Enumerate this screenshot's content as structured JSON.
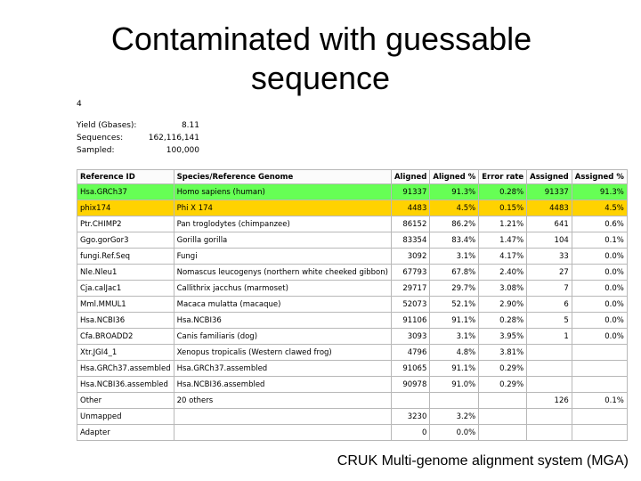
{
  "slide": {
    "title_line1": "Contaminated with guessable",
    "title_line2": "sequence",
    "footer": "CRUK Multi-genome alignment system (MGA)"
  },
  "figure": {
    "number": "4",
    "stats": [
      {
        "label": "Yield (Gbases):",
        "value": "8.11"
      },
      {
        "label": "Sequences:",
        "value": "162,116,141"
      },
      {
        "label": "Sampled:",
        "value": "100,000"
      }
    ],
    "columns": [
      "Reference ID",
      "Species/Reference Genome",
      "Aligned",
      "Aligned %",
      "Error rate",
      "Assigned",
      "Assigned %"
    ],
    "rows": [
      {
        "highlight": "green",
        "cells": [
          "Hsa.GRCh37",
          "Homo sapiens (human)",
          "91337",
          "91.3%",
          "0.28%",
          "91337",
          "91.3%"
        ]
      },
      {
        "highlight": "yellow",
        "cells": [
          "phix174",
          "Phi X 174",
          "4483",
          "4.5%",
          "0.15%",
          "4483",
          "4.5%"
        ]
      },
      {
        "highlight": "",
        "cells": [
          "Ptr.CHIMP2",
          "Pan troglodytes (chimpanzee)",
          "86152",
          "86.2%",
          "1.21%",
          "641",
          "0.6%"
        ]
      },
      {
        "highlight": "",
        "cells": [
          "Ggo.gorGor3",
          "Gorilla gorilla",
          "83354",
          "83.4%",
          "1.47%",
          "104",
          "0.1%"
        ]
      },
      {
        "highlight": "",
        "cells": [
          "fungi.Ref.Seq",
          "Fungi",
          "3092",
          "3.1%",
          "4.17%",
          "33",
          "0.0%"
        ]
      },
      {
        "highlight": "",
        "cells": [
          "Nle.Nleu1",
          "Nomascus leucogenys (northern white cheeked gibbon)",
          "67793",
          "67.8%",
          "2.40%",
          "27",
          "0.0%"
        ]
      },
      {
        "highlight": "",
        "cells": [
          "Cja.calJac1",
          "Callithrix jacchus (marmoset)",
          "29717",
          "29.7%",
          "3.08%",
          "7",
          "0.0%"
        ]
      },
      {
        "highlight": "",
        "cells": [
          "Mml.MMUL1",
          "Macaca mulatta (macaque)",
          "52073",
          "52.1%",
          "2.90%",
          "6",
          "0.0%"
        ]
      },
      {
        "highlight": "",
        "cells": [
          "Hsa.NCBI36",
          "Hsa.NCBI36",
          "91106",
          "91.1%",
          "0.28%",
          "5",
          "0.0%"
        ]
      },
      {
        "highlight": "",
        "cells": [
          "Cfa.BROADD2",
          "Canis familiaris (dog)",
          "3093",
          "3.1%",
          "3.95%",
          "1",
          "0.0%"
        ]
      },
      {
        "highlight": "",
        "cells": [
          "Xtr.JGI4_1",
          "Xenopus tropicalis (Western clawed frog)",
          "4796",
          "4.8%",
          "3.81%",
          "",
          ""
        ]
      },
      {
        "highlight": "",
        "cells": [
          "Hsa.GRCh37.assembled",
          "Hsa.GRCh37.assembled",
          "91065",
          "91.1%",
          "0.29%",
          "",
          ""
        ]
      },
      {
        "highlight": "",
        "cells": [
          "Hsa.NCBI36.assembled",
          "Hsa.NCBI36.assembled",
          "90978",
          "91.0%",
          "0.29%",
          "",
          ""
        ]
      },
      {
        "highlight": "",
        "cells": [
          "Other",
          "20 others",
          "",
          "",
          "",
          "126",
          "0.1%"
        ]
      },
      {
        "highlight": "",
        "cells": [
          "Unmapped",
          "",
          "3230",
          "3.2%",
          "",
          "",
          ""
        ]
      },
      {
        "highlight": "",
        "cells": [
          "Adapter",
          "",
          "0",
          "0.0%",
          "",
          "",
          ""
        ]
      }
    ]
  }
}
